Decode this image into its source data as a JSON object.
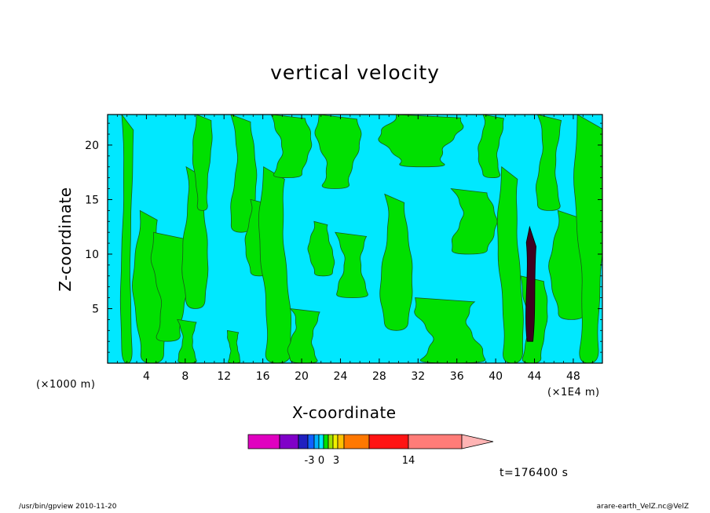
{
  "chart_data": {
    "type": "heatmap",
    "title": "vertical velocity",
    "xlabel": "X-coordinate",
    "ylabel": "Z-coordinate",
    "x_unit_label": "(×1000 m)",
    "x_scale_label": "(×1E4 m)",
    "xlim": [
      0,
      51
    ],
    "ylim": [
      0,
      22.8
    ],
    "xticks": [
      4,
      8,
      12,
      16,
      20,
      24,
      28,
      32,
      36,
      40,
      44,
      48
    ],
    "yticks": [
      5,
      10,
      15,
      20
    ],
    "background_level": "cyan",
    "colorbar": {
      "colors": [
        "#e000c0",
        "#8000c8",
        "#2020c0",
        "#1060ff",
        "#00b0ff",
        "#00e8ff",
        "#00e000",
        "#a0e000",
        "#f0f000",
        "#ffc000",
        "#ff7800",
        "#ff1414",
        "#ff7c78",
        "#ffb4b4"
      ],
      "labels": [
        "-3",
        "0",
        "3",
        "14"
      ],
      "extend": "right"
    },
    "bands": [
      {
        "x": [
          1.5,
          2.5
        ],
        "z": [
          0,
          22.8
        ]
      },
      {
        "x": [
          3.0,
          5.5
        ],
        "z": [
          0,
          14
        ]
      },
      {
        "x": [
          5.0,
          8.0
        ],
        "z": [
          2,
          12
        ]
      },
      {
        "x": [
          7.5,
          9.0
        ],
        "z": [
          0,
          4
        ]
      },
      {
        "x": [
          8.0,
          10.0
        ],
        "z": [
          5,
          18
        ]
      },
      {
        "x": [
          9.0,
          10.5
        ],
        "z": [
          14,
          22.8
        ]
      },
      {
        "x": [
          12.5,
          13.5
        ],
        "z": [
          0,
          3
        ]
      },
      {
        "x": [
          13.0,
          15.0
        ],
        "z": [
          12,
          22.8
        ]
      },
      {
        "x": [
          14.5,
          16.5
        ],
        "z": [
          8,
          15
        ]
      },
      {
        "x": [
          16.0,
          18.5
        ],
        "z": [
          0,
          18
        ]
      },
      {
        "x": [
          17.5,
          20.5
        ],
        "z": [
          17,
          22.8
        ]
      },
      {
        "x": [
          19.0,
          21.5
        ],
        "z": [
          0,
          5
        ]
      },
      {
        "x": [
          21.0,
          23.0
        ],
        "z": [
          8,
          13
        ]
      },
      {
        "x": [
          22.0,
          25.5
        ],
        "z": [
          16,
          22.8
        ]
      },
      {
        "x": [
          24.0,
          26.5
        ],
        "z": [
          6,
          12
        ]
      },
      {
        "x": [
          28.5,
          31.0
        ],
        "z": [
          3,
          15.5
        ]
      },
      {
        "x": [
          29.0,
          35.5
        ],
        "z": [
          18,
          22.8
        ]
      },
      {
        "x": [
          32.5,
          38.0
        ],
        "z": [
          0,
          6
        ]
      },
      {
        "x": [
          36.0,
          39.5
        ],
        "z": [
          10,
          16
        ]
      },
      {
        "x": [
          38.5,
          40.5
        ],
        "z": [
          17,
          22.8
        ]
      },
      {
        "x": [
          40.5,
          42.5
        ],
        "z": [
          0,
          18
        ]
      },
      {
        "x": [
          43.0,
          45.0
        ],
        "z": [
          0,
          8
        ]
      },
      {
        "x": [
          44.5,
          46.5
        ],
        "z": [
          14,
          22.8
        ]
      },
      {
        "x": [
          46.0,
          49.0
        ],
        "z": [
          4,
          14
        ]
      },
      {
        "x": [
          48.5,
          51.0
        ],
        "z": [
          0,
          22.8
        ]
      }
    ],
    "strong_updraft": {
      "x": [
        43.0,
        44.0
      ],
      "z": [
        2,
        12.5
      ]
    },
    "time_label": "t=176400 s"
  },
  "footer": {
    "left": "/usr/bin/gpview   2010-11-20",
    "right": "arare-earth_VelZ.nc@VelZ"
  },
  "colors": {
    "cyan": "#00e8ff",
    "green": "#00e000",
    "dark": "#400020",
    "axis": "#000000"
  }
}
